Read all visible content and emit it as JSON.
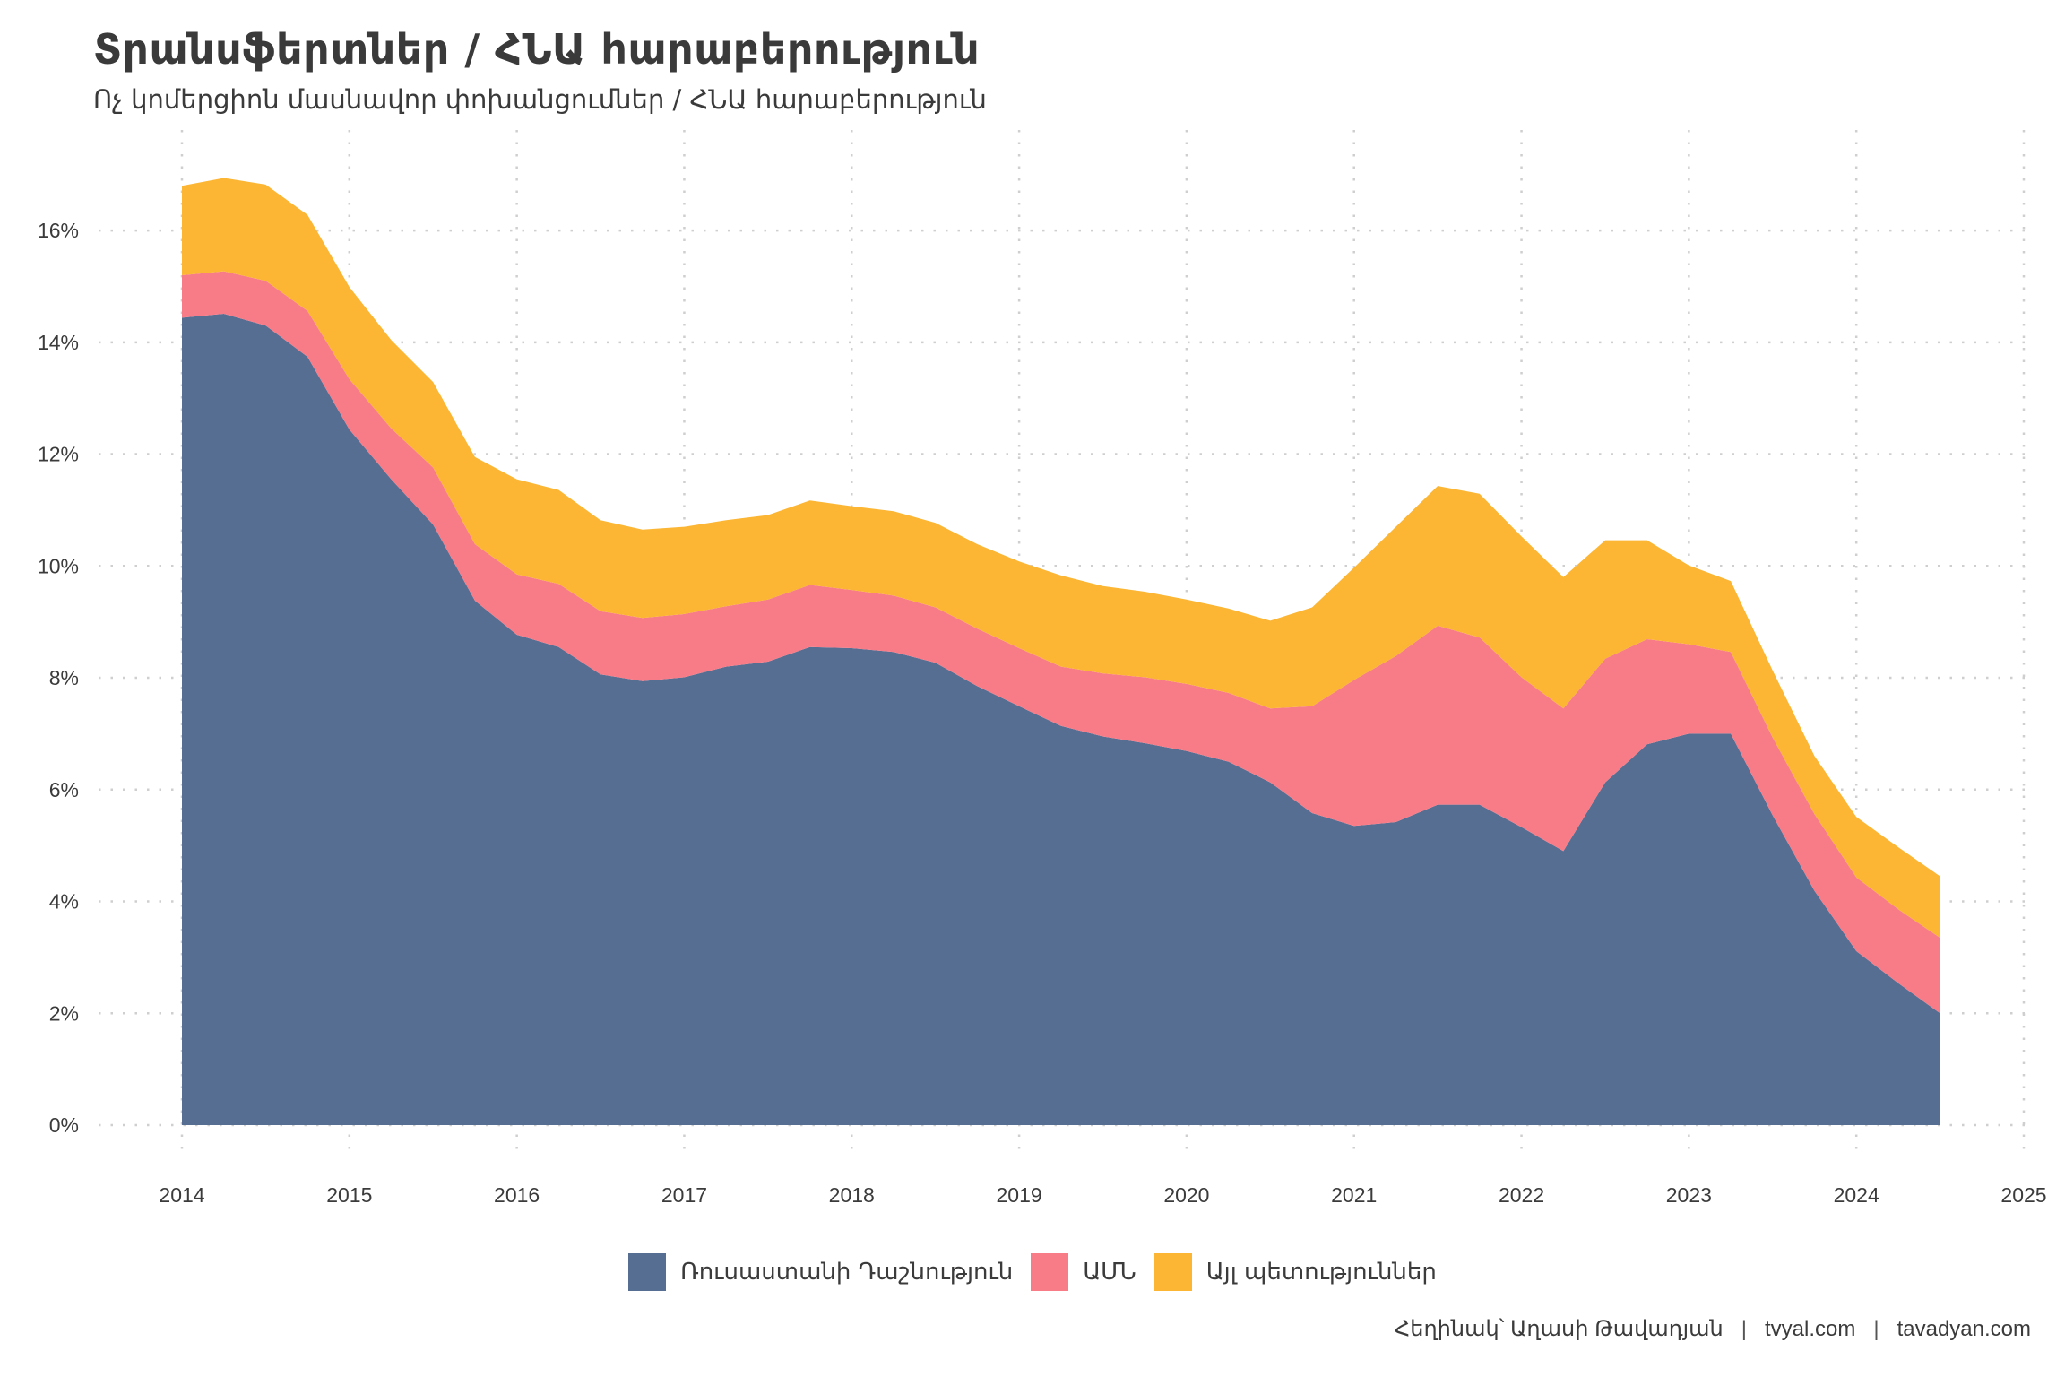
{
  "header": {
    "title": "Տրանսֆերտներ / ՀՆԱ հարաբերություն",
    "subtitle": "Ոչ կոմերցիոն մասնավոր փոխանցումներ / ՀՆԱ հարաբերություն"
  },
  "caption": {
    "author": "Հեղինակ՝ Աղասի Թավադյան",
    "site1": "tvyal.com",
    "site2": "tavadyan.com",
    "separator": "|"
  },
  "chart_data": {
    "type": "area",
    "stacked": true,
    "title": "Տրանսֆերտներ / ՀՆԱ հարաբերություն",
    "subtitle": "Ոչ կոմերցիոն մասնավոր փոխանցումներ / ՀՆԱ հարաբերություն",
    "xlabel": "",
    "ylabel": "",
    "xlim": [
      2014,
      2025
    ],
    "ylim": [
      0,
      17.5
    ],
    "x_ticks": [
      "2014",
      "2015",
      "2016",
      "2017",
      "2018",
      "2019",
      "2020",
      "2021",
      "2022",
      "2023",
      "2024",
      "2025"
    ],
    "y_ticks": [
      "0%",
      "2%",
      "4%",
      "6%",
      "8%",
      "10%",
      "12%",
      "14%",
      "16%"
    ],
    "grid": true,
    "legend_position": "bottom",
    "x": [
      2014.0,
      2014.25,
      2014.5,
      2014.75,
      2015.0,
      2015.25,
      2015.5,
      2015.75,
      2016.0,
      2016.25,
      2016.5,
      2016.75,
      2017.0,
      2017.25,
      2017.5,
      2017.75,
      2018.0,
      2018.25,
      2018.5,
      2018.75,
      2019.0,
      2019.25,
      2019.5,
      2019.75,
      2020.0,
      2020.25,
      2020.5,
      2020.75,
      2021.0,
      2021.25,
      2021.5,
      2021.75,
      2022.0,
      2022.25,
      2022.5,
      2022.75,
      2023.0,
      2023.25,
      2023.5,
      2023.75,
      2024.0,
      2024.25,
      2024.5
    ],
    "series": [
      {
        "name": "Ռուսաստանի Դաշնություն",
        "color": "#576e93",
        "values": [
          14.44,
          14.51,
          14.3,
          13.74,
          12.44,
          11.55,
          10.74,
          9.38,
          8.77,
          8.55,
          8.06,
          7.94,
          8.01,
          8.2,
          8.29,
          8.55,
          8.53,
          8.46,
          8.27,
          7.85,
          7.49,
          7.14,
          6.95,
          6.83,
          6.69,
          6.5,
          6.13,
          5.58,
          5.35,
          5.42,
          5.73,
          5.73,
          5.33,
          4.9,
          6.13,
          6.81,
          7.0,
          7.0,
          5.54,
          4.19,
          3.11,
          2.54,
          2.0
        ]
      },
      {
        "name": "ԱՄՆ",
        "color": "#f87c87",
        "values": [
          0.76,
          0.76,
          0.8,
          0.82,
          0.9,
          0.91,
          1.02,
          1.01,
          1.08,
          1.13,
          1.13,
          1.13,
          1.13,
          1.08,
          1.11,
          1.11,
          1.04,
          1.01,
          0.99,
          1.03,
          1.04,
          1.06,
          1.13,
          1.18,
          1.2,
          1.23,
          1.32,
          1.91,
          2.61,
          2.97,
          3.2,
          2.99,
          2.68,
          2.55,
          2.21,
          1.88,
          1.6,
          1.46,
          1.39,
          1.37,
          1.32,
          1.32,
          1.35
        ]
      },
      {
        "name": "Այլ պետություններ",
        "color": "#fcb633",
        "values": [
          1.6,
          1.67,
          1.72,
          1.72,
          1.65,
          1.58,
          1.53,
          1.56,
          1.7,
          1.68,
          1.63,
          1.58,
          1.56,
          1.54,
          1.51,
          1.51,
          1.5,
          1.51,
          1.51,
          1.51,
          1.55,
          1.63,
          1.56,
          1.53,
          1.51,
          1.51,
          1.57,
          1.77,
          2.01,
          2.31,
          2.5,
          2.57,
          2.52,
          2.35,
          2.12,
          1.77,
          1.41,
          1.27,
          1.2,
          1.04,
          1.08,
          1.11,
          1.1
        ]
      }
    ]
  }
}
